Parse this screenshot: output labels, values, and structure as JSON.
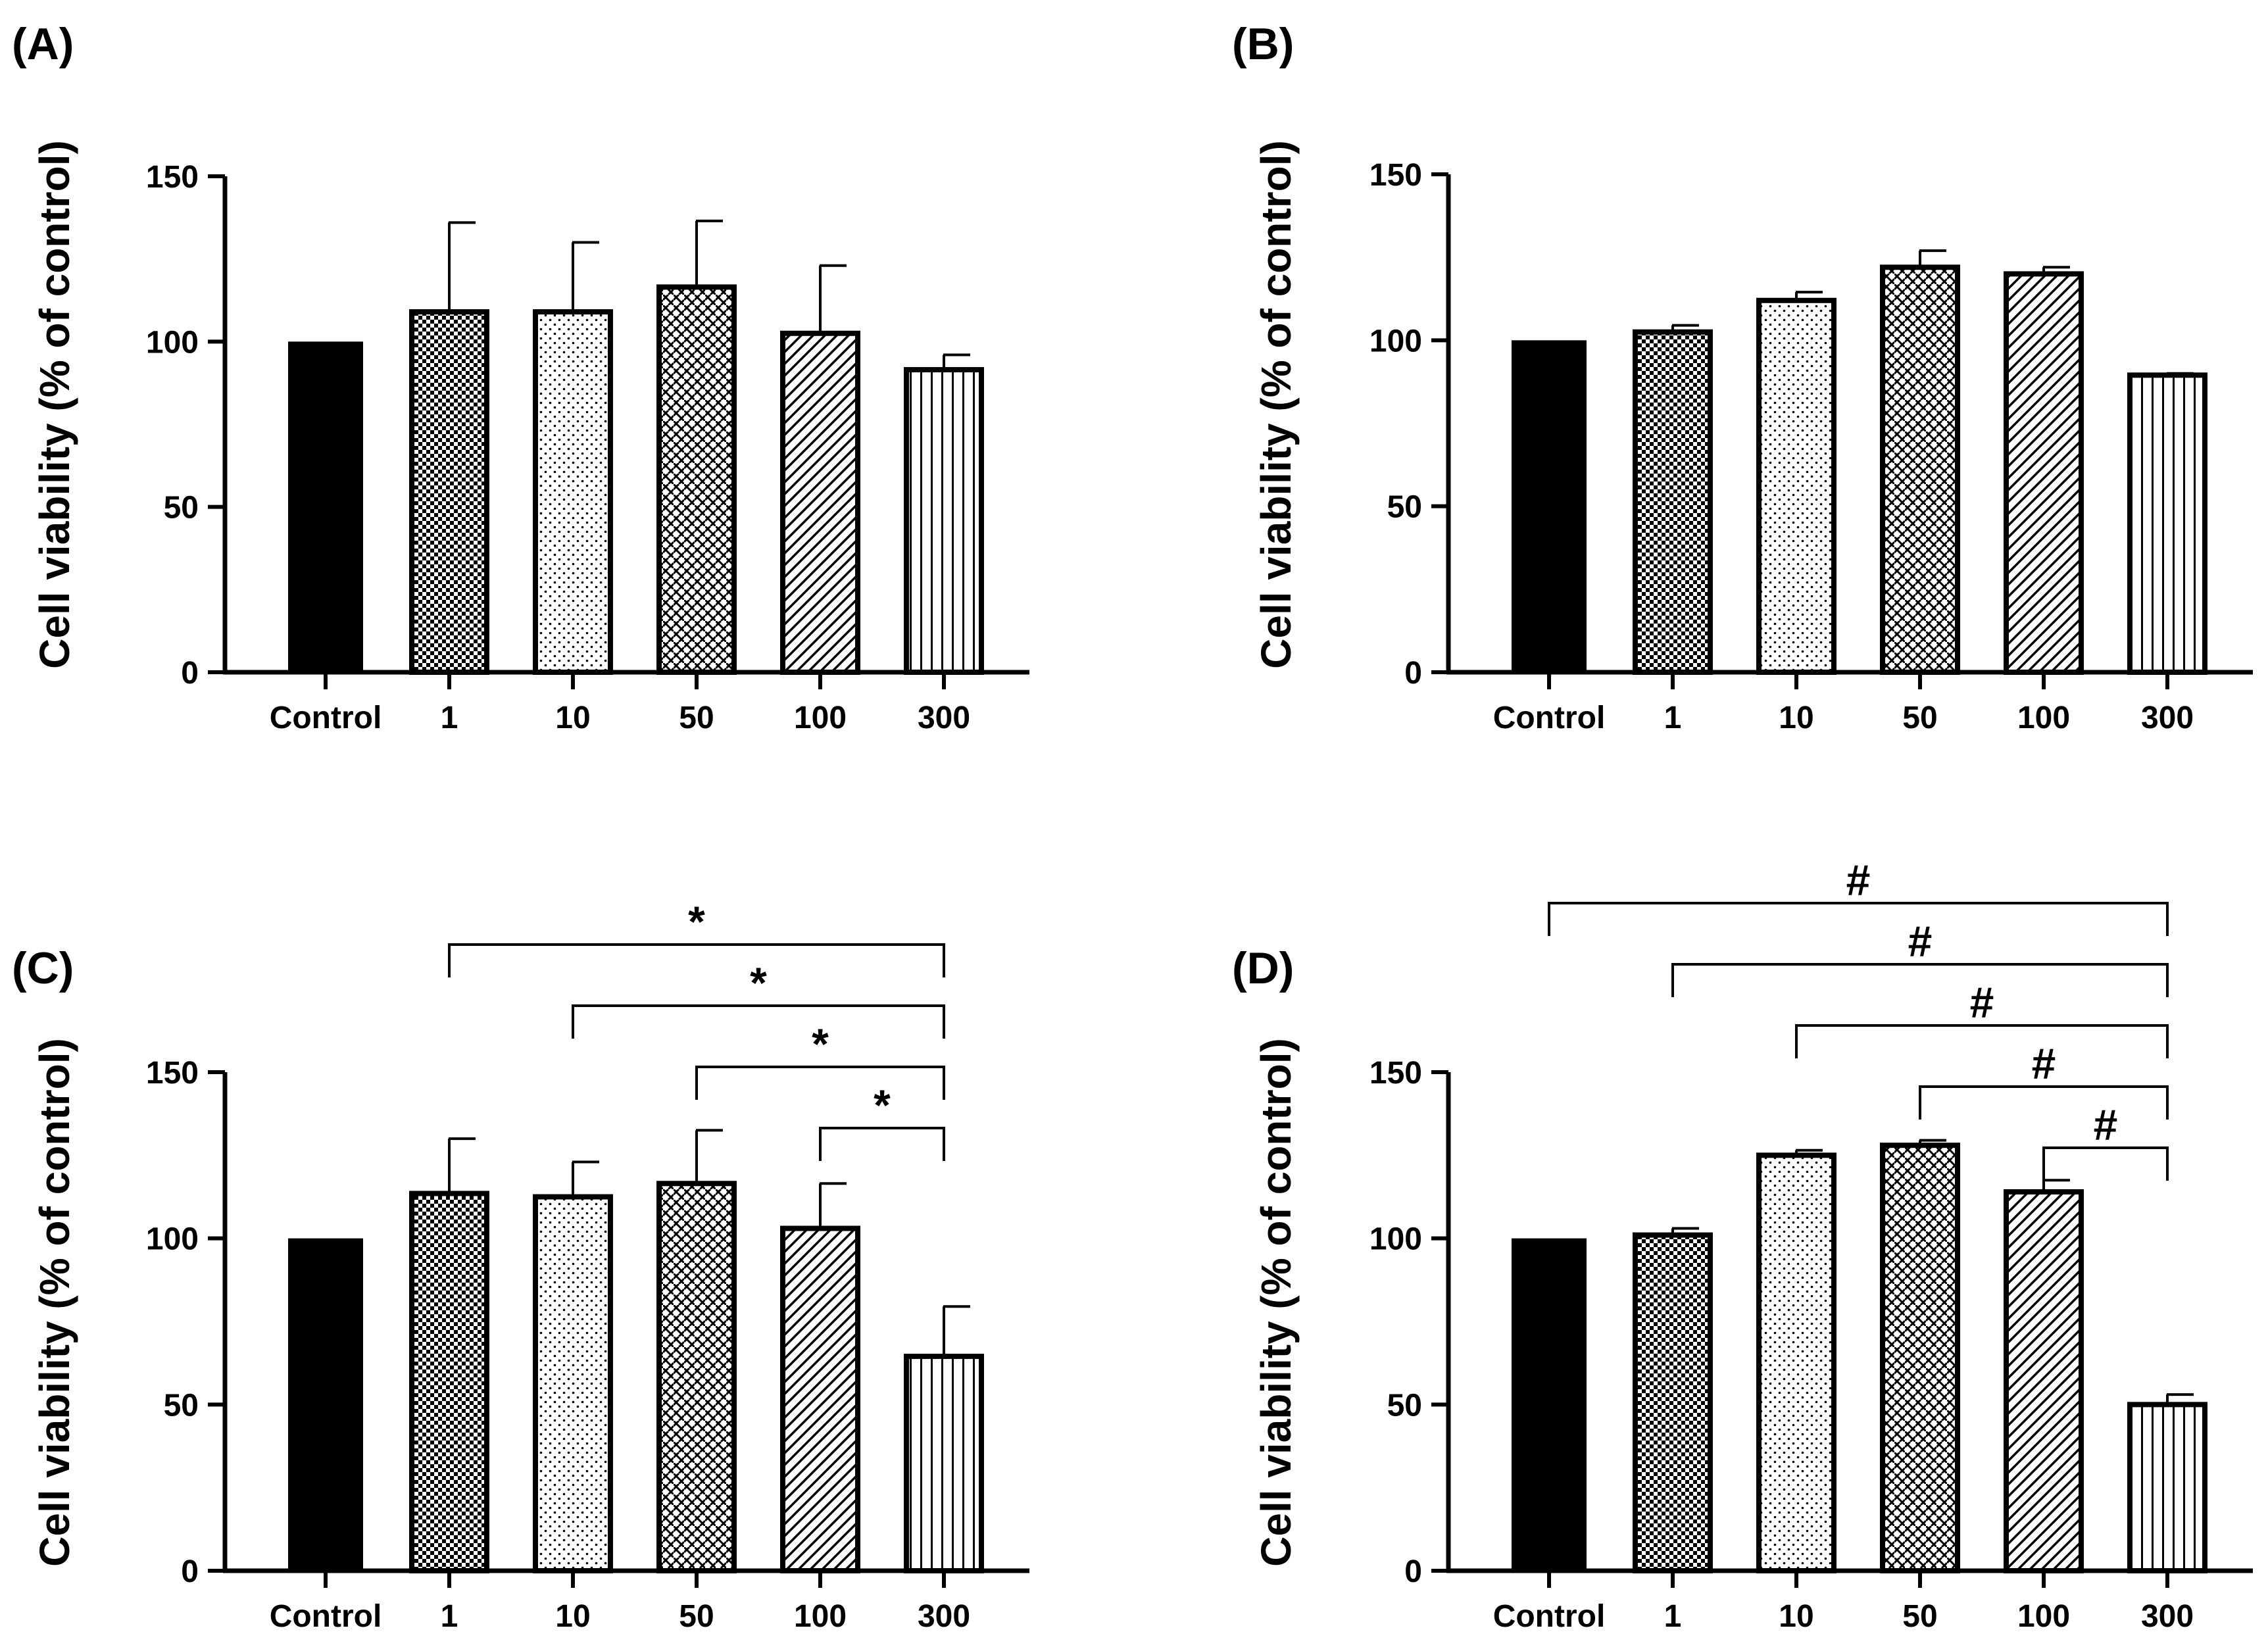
{
  "figure": {
    "colors": {
      "ink": "#000000",
      "background": "#ffffff"
    }
  },
  "chart_data": [
    {
      "panel": "(A)",
      "type": "bar",
      "categories": [
        "Control",
        "1",
        "10",
        "50",
        "100",
        "300"
      ],
      "values": [
        100,
        109,
        109,
        116.5,
        102.5,
        91.5
      ],
      "errors": [
        0,
        27,
        21,
        20,
        20.5,
        4.5
      ],
      "patterns": [
        "solid",
        "checker",
        "dots",
        "weave",
        "diag",
        "vert"
      ],
      "ylabel": "Cell viability (% of control)",
      "xlabel": "",
      "ylim": [
        0,
        150
      ],
      "yticks": [
        0,
        50,
        100,
        150
      ],
      "significance": []
    },
    {
      "panel": "(B)",
      "type": "bar",
      "categories": [
        "Control",
        "1",
        "10",
        "50",
        "100",
        "300"
      ],
      "values": [
        100,
        102.5,
        112,
        122,
        120,
        89.5
      ],
      "errors": [
        0,
        2,
        2.5,
        5,
        2,
        0.5
      ],
      "patterns": [
        "solid",
        "checker",
        "dots",
        "weave",
        "diag",
        "vert"
      ],
      "ylabel": "Cell viability (% of control)",
      "xlabel": "",
      "ylim": [
        0,
        150
      ],
      "yticks": [
        0,
        50,
        100,
        150
      ],
      "significance": []
    },
    {
      "panel": "(C)",
      "type": "bar",
      "categories": [
        "Control",
        "1",
        "10",
        "50",
        "100",
        "300"
      ],
      "values": [
        100,
        113.5,
        112.5,
        116.5,
        103,
        64.5
      ],
      "errors": [
        0,
        16.5,
        10.5,
        16,
        13.5,
        15
      ],
      "patterns": [
        "solid",
        "checker",
        "dots",
        "weave",
        "diag",
        "vert"
      ],
      "ylabel": "Cell viability (% of control)",
      "xlabel": "",
      "ylim": [
        0,
        150
      ],
      "yticks": [
        0,
        50,
        100,
        150
      ],
      "significance": [
        {
          "from": "1",
          "to": "300",
          "label": "*"
        },
        {
          "from": "10",
          "to": "300",
          "label": "*"
        },
        {
          "from": "50",
          "to": "300",
          "label": "*"
        },
        {
          "from": "100",
          "to": "300",
          "label": "*"
        }
      ]
    },
    {
      "panel": "(D)",
      "type": "bar",
      "categories": [
        "Control",
        "1",
        "10",
        "50",
        "100",
        "300"
      ],
      "values": [
        100,
        101,
        125,
        128,
        114,
        50
      ],
      "errors": [
        0,
        2,
        1.5,
        1.5,
        3.5,
        3
      ],
      "patterns": [
        "solid",
        "checker",
        "dots",
        "weave",
        "diag",
        "vert"
      ],
      "ylabel": "Cell viability (% of control)",
      "xlabel": "",
      "ylim": [
        0,
        150
      ],
      "yticks": [
        0,
        50,
        100,
        150
      ],
      "significance": [
        {
          "from": "Control",
          "to": "300",
          "label": "#"
        },
        {
          "from": "1",
          "to": "300",
          "label": "#"
        },
        {
          "from": "10",
          "to": "300",
          "label": "#"
        },
        {
          "from": "50",
          "to": "300",
          "label": "#"
        },
        {
          "from": "100",
          "to": "300",
          "label": "#"
        }
      ]
    }
  ]
}
